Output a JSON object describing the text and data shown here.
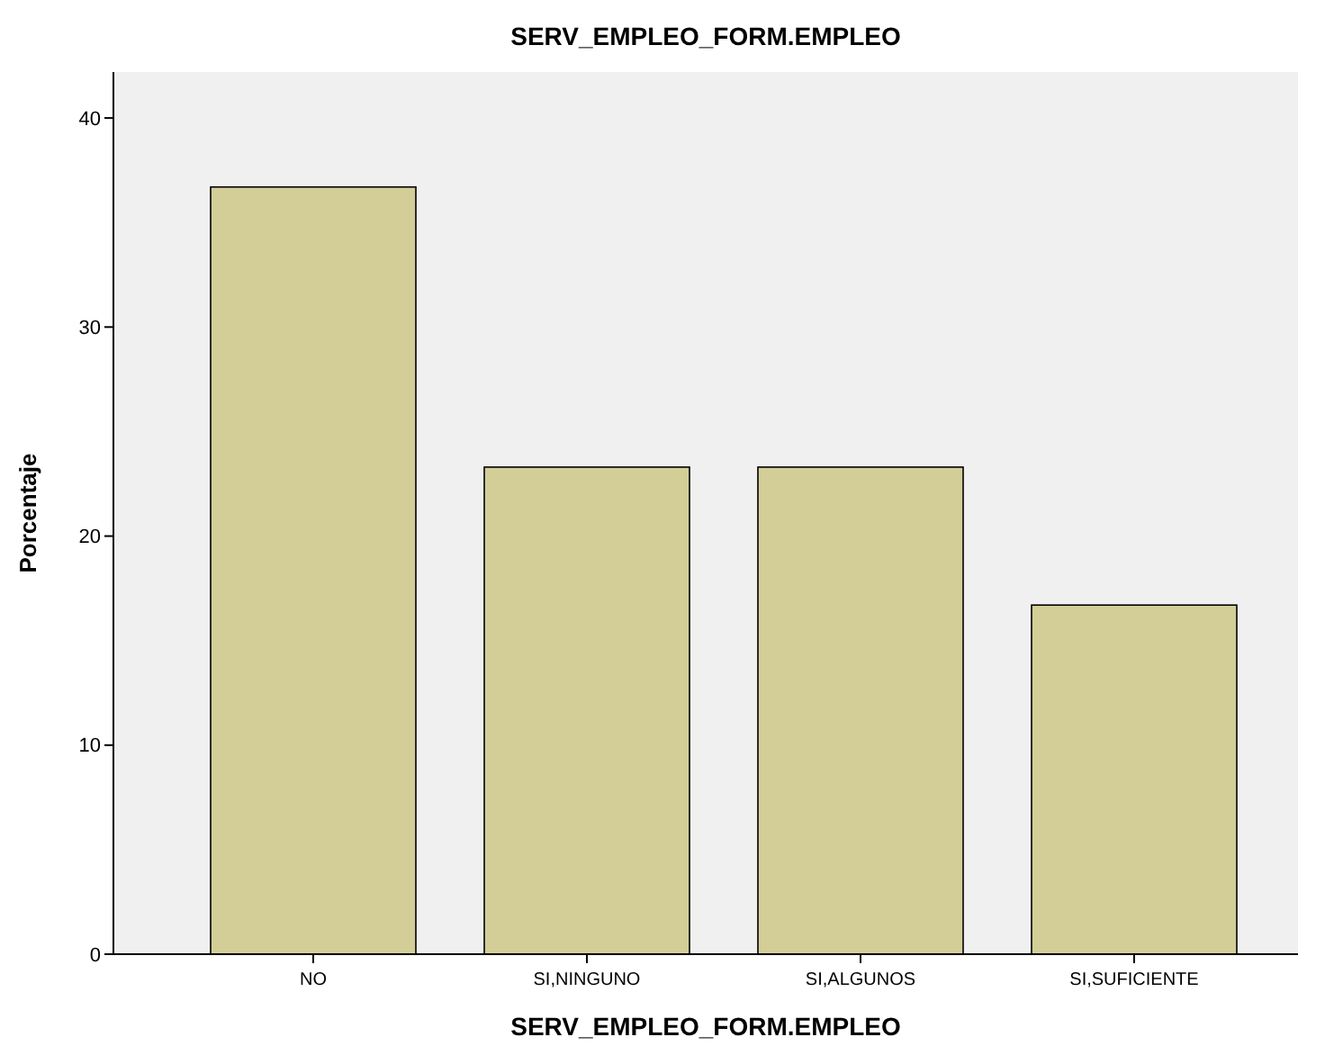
{
  "chart_data": {
    "type": "bar",
    "title": "SERV_EMPLEO_FORM.EMPLEO",
    "xlabel": "SERV_EMPLEO_FORM.EMPLEO",
    "ylabel": "Porcentaje",
    "categories": [
      "NO",
      "SI,NINGUNO",
      "SI,ALGUNOS",
      "SI,SUFICIENTE"
    ],
    "values": [
      36.7,
      23.3,
      23.3,
      16.7
    ],
    "color": "#d3ce97",
    "ylim": [
      0,
      42.2
    ],
    "yticks": [
      0,
      10,
      20,
      30,
      40
    ],
    "grid": false
  }
}
